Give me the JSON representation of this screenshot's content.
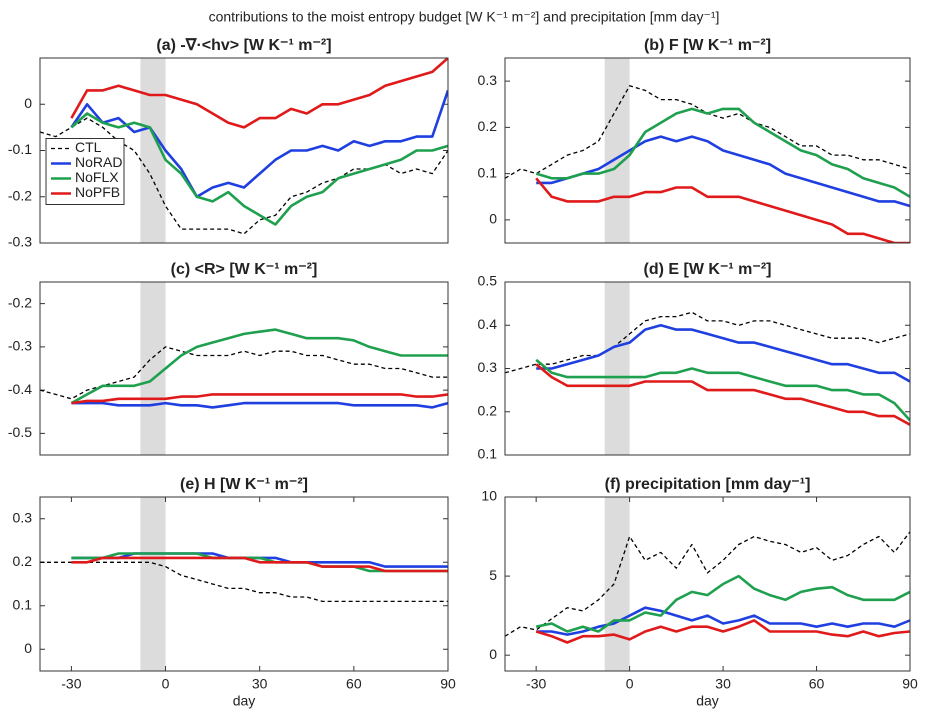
{
  "title": "contributions to the moist entropy budget [W K⁻¹ m⁻²] and precipitation [mm day⁻¹]",
  "chart_data": [
    {
      "type": "line",
      "title": "(a)  -∇·<hv>  [W K⁻¹ m⁻²]",
      "xlim": [
        -40,
        90
      ],
      "ylim": [
        -0.3,
        0.1
      ],
      "yticks": [
        -0.3,
        -0.2,
        -0.1,
        0
      ],
      "highlight_x": [
        -8,
        0
      ],
      "legend": "center left",
      "x": [
        -40,
        -35,
        -30,
        -25,
        -20,
        -15,
        -10,
        -5,
        0,
        5,
        10,
        15,
        20,
        25,
        30,
        35,
        40,
        45,
        50,
        55,
        60,
        65,
        70,
        75,
        80,
        85,
        90
      ],
      "series": [
        {
          "name": "CTL",
          "color": "#000000",
          "linestyle": "dashed",
          "values": [
            -0.06,
            -0.07,
            -0.05,
            -0.03,
            -0.05,
            -0.08,
            -0.1,
            -0.15,
            -0.22,
            -0.27,
            -0.27,
            -0.27,
            -0.27,
            -0.28,
            -0.25,
            -0.24,
            -0.2,
            -0.19,
            -0.17,
            -0.16,
            -0.14,
            -0.14,
            -0.13,
            -0.15,
            -0.14,
            -0.15,
            -0.1
          ]
        },
        {
          "name": "NoRAD",
          "color": "#1f3fe0",
          "values": [
            null,
            null,
            -0.05,
            0,
            -0.04,
            -0.03,
            -0.06,
            -0.05,
            -0.1,
            -0.14,
            -0.2,
            -0.18,
            -0.17,
            -0.18,
            -0.15,
            -0.12,
            -0.1,
            -0.1,
            -0.09,
            -0.1,
            -0.08,
            -0.09,
            -0.08,
            -0.08,
            -0.07,
            -0.07,
            0.03
          ]
        },
        {
          "name": "NoFLX",
          "color": "#1fa04f",
          "values": [
            null,
            null,
            -0.05,
            -0.02,
            -0.04,
            -0.05,
            -0.04,
            -0.05,
            -0.12,
            -0.15,
            -0.2,
            -0.21,
            -0.19,
            -0.22,
            -0.24,
            -0.26,
            -0.22,
            -0.2,
            -0.19,
            -0.16,
            -0.15,
            -0.14,
            -0.13,
            -0.12,
            -0.1,
            -0.1,
            -0.09
          ]
        },
        {
          "name": "NoPFB",
          "color": "#e01a1a",
          "values": [
            null,
            null,
            -0.03,
            0.03,
            0.03,
            0.04,
            0.03,
            0.02,
            0.02,
            0.01,
            0,
            -0.02,
            -0.04,
            -0.05,
            -0.03,
            -0.03,
            -0.01,
            -0.02,
            0,
            0,
            0.01,
            0.02,
            0.04,
            0.05,
            0.06,
            0.07,
            0.1
          ]
        }
      ]
    },
    {
      "type": "line",
      "title": "(b)   F  [W K⁻¹ m⁻²]",
      "xlim": [
        -40,
        90
      ],
      "ylim": [
        -0.05,
        0.35
      ],
      "yticks": [
        0,
        0.1,
        0.2,
        0.3
      ],
      "highlight_x": [
        -8,
        0
      ],
      "x": [
        -40,
        -35,
        -30,
        -25,
        -20,
        -15,
        -10,
        -5,
        0,
        5,
        10,
        15,
        20,
        25,
        30,
        35,
        40,
        45,
        50,
        55,
        60,
        65,
        70,
        75,
        80,
        85,
        90
      ],
      "series": [
        {
          "name": "CTL",
          "color": "#000000",
          "linestyle": "dashed",
          "values": [
            0.09,
            0.11,
            0.1,
            0.12,
            0.14,
            0.15,
            0.17,
            0.23,
            0.29,
            0.28,
            0.26,
            0.26,
            0.25,
            0.23,
            0.22,
            0.23,
            0.21,
            0.2,
            0.18,
            0.16,
            0.16,
            0.14,
            0.14,
            0.13,
            0.13,
            0.12,
            0.11
          ]
        },
        {
          "name": "NoRAD",
          "color": "#1f3fe0",
          "values": [
            null,
            null,
            0.08,
            0.08,
            0.09,
            0.1,
            0.11,
            0.13,
            0.15,
            0.17,
            0.18,
            0.17,
            0.18,
            0.17,
            0.15,
            0.14,
            0.13,
            0.12,
            0.1,
            0.09,
            0.08,
            0.07,
            0.06,
            0.05,
            0.04,
            0.04,
            0.03
          ]
        },
        {
          "name": "NoFLX",
          "color": "#1fa04f",
          "values": [
            null,
            null,
            0.1,
            0.09,
            0.09,
            0.1,
            0.1,
            0.11,
            0.14,
            0.19,
            0.21,
            0.23,
            0.24,
            0.23,
            0.24,
            0.24,
            0.21,
            0.19,
            0.17,
            0.15,
            0.14,
            0.12,
            0.11,
            0.09,
            0.08,
            0.07,
            0.05
          ]
        },
        {
          "name": "NoPFB",
          "color": "#e01a1a",
          "values": [
            null,
            null,
            0.09,
            0.05,
            0.04,
            0.04,
            0.04,
            0.05,
            0.05,
            0.06,
            0.06,
            0.07,
            0.07,
            0.05,
            0.05,
            0.05,
            0.04,
            0.03,
            0.02,
            0.01,
            0,
            -0.01,
            -0.03,
            -0.03,
            -0.04,
            -0.05,
            -0.05
          ]
        }
      ]
    },
    {
      "type": "line",
      "title": "(c)     <R>  [W K⁻¹ m⁻²]",
      "xlim": [
        -40,
        90
      ],
      "ylim": [
        -0.55,
        -0.15
      ],
      "yticks": [
        -0.5,
        -0.4,
        -0.3,
        -0.2
      ],
      "highlight_x": [
        -8,
        0
      ],
      "x": [
        -40,
        -35,
        -30,
        -25,
        -20,
        -15,
        -10,
        -5,
        0,
        5,
        10,
        15,
        20,
        25,
        30,
        35,
        40,
        45,
        50,
        55,
        60,
        65,
        70,
        75,
        80,
        85,
        90
      ],
      "series": [
        {
          "name": "CTL",
          "color": "#000000",
          "linestyle": "dashed",
          "values": [
            -0.4,
            -0.41,
            -0.42,
            -0.4,
            -0.39,
            -0.38,
            -0.37,
            -0.33,
            -0.3,
            -0.31,
            -0.32,
            -0.32,
            -0.32,
            -0.31,
            -0.32,
            -0.31,
            -0.31,
            -0.32,
            -0.32,
            -0.33,
            -0.34,
            -0.34,
            -0.35,
            -0.35,
            -0.36,
            -0.37,
            -0.37
          ]
        },
        {
          "name": "NoRAD",
          "color": "#1f3fe0",
          "values": [
            null,
            null,
            -0.43,
            -0.43,
            -0.43,
            -0.435,
            -0.435,
            -0.435,
            -0.43,
            -0.435,
            -0.435,
            -0.44,
            -0.435,
            -0.43,
            -0.43,
            -0.43,
            -0.43,
            -0.43,
            -0.43,
            -0.43,
            -0.435,
            -0.435,
            -0.435,
            -0.435,
            -0.435,
            -0.44,
            -0.43
          ]
        },
        {
          "name": "NoFLX",
          "color": "#1fa04f",
          "values": [
            null,
            null,
            -0.43,
            -0.41,
            -0.39,
            -0.39,
            -0.39,
            -0.38,
            -0.35,
            -0.32,
            -0.3,
            -0.29,
            -0.28,
            -0.27,
            -0.265,
            -0.26,
            -0.27,
            -0.28,
            -0.28,
            -0.28,
            -0.285,
            -0.3,
            -0.31,
            -0.32,
            -0.32,
            -0.32,
            -0.32
          ]
        },
        {
          "name": "NoPFB",
          "color": "#e01a1a",
          "values": [
            null,
            null,
            -0.43,
            -0.425,
            -0.425,
            -0.42,
            -0.42,
            -0.42,
            -0.42,
            -0.415,
            -0.415,
            -0.41,
            -0.41,
            -0.41,
            -0.41,
            -0.41,
            -0.41,
            -0.41,
            -0.41,
            -0.41,
            -0.41,
            -0.41,
            -0.41,
            -0.41,
            -0.415,
            -0.415,
            -0.41
          ]
        }
      ]
    },
    {
      "type": "line",
      "title": "(d)   E  [W K⁻¹ m⁻²]",
      "xlim": [
        -40,
        90
      ],
      "ylim": [
        0.1,
        0.5
      ],
      "yticks": [
        0.1,
        0.2,
        0.3,
        0.4,
        0.5
      ],
      "highlight_x": [
        -8,
        0
      ],
      "x": [
        -40,
        -35,
        -30,
        -25,
        -20,
        -15,
        -10,
        -5,
        0,
        5,
        10,
        15,
        20,
        25,
        30,
        35,
        40,
        45,
        50,
        55,
        60,
        65,
        70,
        75,
        80,
        85,
        90
      ],
      "series": [
        {
          "name": "CTL",
          "color": "#000000",
          "linestyle": "dashed",
          "values": [
            0.29,
            0.3,
            0.31,
            0.31,
            0.32,
            0.33,
            0.33,
            0.35,
            0.38,
            0.41,
            0.42,
            0.42,
            0.43,
            0.41,
            0.41,
            0.4,
            0.41,
            0.41,
            0.4,
            0.39,
            0.38,
            0.37,
            0.37,
            0.37,
            0.36,
            0.37,
            0.38
          ]
        },
        {
          "name": "NoRAD",
          "color": "#1f3fe0",
          "values": [
            null,
            null,
            0.3,
            0.3,
            0.31,
            0.32,
            0.33,
            0.35,
            0.36,
            0.39,
            0.4,
            0.39,
            0.39,
            0.38,
            0.37,
            0.36,
            0.36,
            0.35,
            0.34,
            0.33,
            0.32,
            0.31,
            0.31,
            0.3,
            0.29,
            0.29,
            0.27
          ]
        },
        {
          "name": "NoFLX",
          "color": "#1fa04f",
          "values": [
            null,
            null,
            0.32,
            0.29,
            0.28,
            0.28,
            0.28,
            0.28,
            0.28,
            0.28,
            0.29,
            0.29,
            0.3,
            0.29,
            0.29,
            0.29,
            0.28,
            0.27,
            0.26,
            0.26,
            0.26,
            0.25,
            0.25,
            0.24,
            0.24,
            0.22,
            0.18
          ]
        },
        {
          "name": "NoPFB",
          "color": "#e01a1a",
          "values": [
            null,
            null,
            0.31,
            0.28,
            0.26,
            0.26,
            0.26,
            0.26,
            0.26,
            0.27,
            0.27,
            0.27,
            0.27,
            0.25,
            0.25,
            0.25,
            0.25,
            0.24,
            0.23,
            0.23,
            0.22,
            0.21,
            0.2,
            0.2,
            0.19,
            0.19,
            0.17
          ]
        }
      ]
    },
    {
      "type": "line",
      "title": "(e)   H  [W K⁻¹ m⁻²]",
      "xlabel": "day",
      "xlim": [
        -40,
        90
      ],
      "xticks": [
        -30,
        0,
        30,
        60,
        90
      ],
      "ylim": [
        -0.05,
        0.35
      ],
      "yticks": [
        0,
        0.1,
        0.2,
        0.3
      ],
      "highlight_x": [
        -8,
        0
      ],
      "x": [
        -40,
        -35,
        -30,
        -25,
        -20,
        -15,
        -10,
        -5,
        0,
        5,
        10,
        15,
        20,
        25,
        30,
        35,
        40,
        45,
        50,
        55,
        60,
        65,
        70,
        75,
        80,
        85,
        90
      ],
      "series": [
        {
          "name": "CTL",
          "color": "#000000",
          "linestyle": "dashed",
          "values": [
            0.2,
            0.2,
            0.2,
            0.2,
            0.2,
            0.2,
            0.2,
            0.2,
            0.19,
            0.17,
            0.16,
            0.15,
            0.14,
            0.14,
            0.13,
            0.13,
            0.12,
            0.12,
            0.11,
            0.11,
            0.11,
            0.11,
            0.11,
            0.11,
            0.11,
            0.11,
            0.11
          ]
        },
        {
          "name": "NoRAD",
          "color": "#1f3fe0",
          "values": [
            null,
            null,
            0.21,
            0.21,
            0.21,
            0.21,
            0.22,
            0.22,
            0.22,
            0.22,
            0.22,
            0.22,
            0.21,
            0.21,
            0.21,
            0.21,
            0.2,
            0.2,
            0.2,
            0.2,
            0.2,
            0.2,
            0.19,
            0.19,
            0.19,
            0.19,
            0.19
          ]
        },
        {
          "name": "NoFLX",
          "color": "#1fa04f",
          "values": [
            null,
            null,
            0.21,
            0.21,
            0.21,
            0.22,
            0.22,
            0.22,
            0.22,
            0.22,
            0.22,
            0.21,
            0.21,
            0.21,
            0.21,
            0.2,
            0.2,
            0.2,
            0.19,
            0.19,
            0.19,
            0.18,
            0.18,
            0.18,
            0.18,
            0.18,
            0.18
          ]
        },
        {
          "name": "NoPFB",
          "color": "#e01a1a",
          "values": [
            null,
            null,
            0.2,
            0.2,
            0.21,
            0.21,
            0.21,
            0.21,
            0.21,
            0.21,
            0.21,
            0.21,
            0.21,
            0.21,
            0.2,
            0.2,
            0.2,
            0.2,
            0.19,
            0.19,
            0.19,
            0.19,
            0.18,
            0.18,
            0.18,
            0.18,
            0.18
          ]
        }
      ]
    },
    {
      "type": "line",
      "title": "(f)   precipitation  [mm day⁻¹]",
      "xlabel": "day",
      "xlim": [
        -40,
        90
      ],
      "xticks": [
        -30,
        0,
        30,
        60,
        90
      ],
      "ylim": [
        -1,
        10
      ],
      "yticks": [
        0,
        5,
        10
      ],
      "highlight_x": [
        -8,
        0
      ],
      "x": [
        -40,
        -35,
        -30,
        -25,
        -20,
        -15,
        -10,
        -5,
        0,
        5,
        10,
        15,
        20,
        25,
        30,
        35,
        40,
        45,
        50,
        55,
        60,
        65,
        70,
        75,
        80,
        85,
        90
      ],
      "series": [
        {
          "name": "CTL",
          "color": "#000000",
          "linestyle": "dashed",
          "values": [
            1.2,
            1.8,
            1.6,
            2.3,
            3,
            2.8,
            3.5,
            4.5,
            7.5,
            6,
            6.5,
            5.5,
            7,
            5.2,
            6,
            7,
            7.5,
            7.2,
            7,
            6.5,
            6.8,
            6,
            6.3,
            7,
            7.5,
            6.5,
            7.8
          ]
        },
        {
          "name": "NoRAD",
          "color": "#1f3fe0",
          "values": [
            null,
            null,
            1.5,
            1.5,
            1.3,
            1.5,
            1.8,
            2,
            2.5,
            3,
            2.8,
            2.5,
            2.2,
            2.5,
            2,
            2.2,
            2.5,
            2,
            2,
            2,
            1.8,
            2,
            1.8,
            2,
            2,
            1.8,
            2.2
          ]
        },
        {
          "name": "NoFLX",
          "color": "#1fa04f",
          "values": [
            null,
            null,
            1.8,
            2,
            1.5,
            1.8,
            1.5,
            2.2,
            2.2,
            2.7,
            2.5,
            3.5,
            4,
            3.8,
            4.5,
            5,
            4.2,
            3.8,
            3.5,
            4,
            4.2,
            4.3,
            3.8,
            3.5,
            3.5,
            3.5,
            4
          ]
        },
        {
          "name": "NoPFB",
          "color": "#e01a1a",
          "values": [
            null,
            null,
            1.5,
            1.2,
            0.8,
            1.2,
            1.2,
            1.3,
            1,
            1.5,
            1.8,
            1.5,
            1.8,
            1.8,
            1.5,
            1.8,
            2.2,
            1.5,
            1.5,
            1.5,
            1.5,
            1.3,
            1.2,
            1.5,
            1.2,
            1.4,
            1.5
          ]
        }
      ]
    }
  ]
}
